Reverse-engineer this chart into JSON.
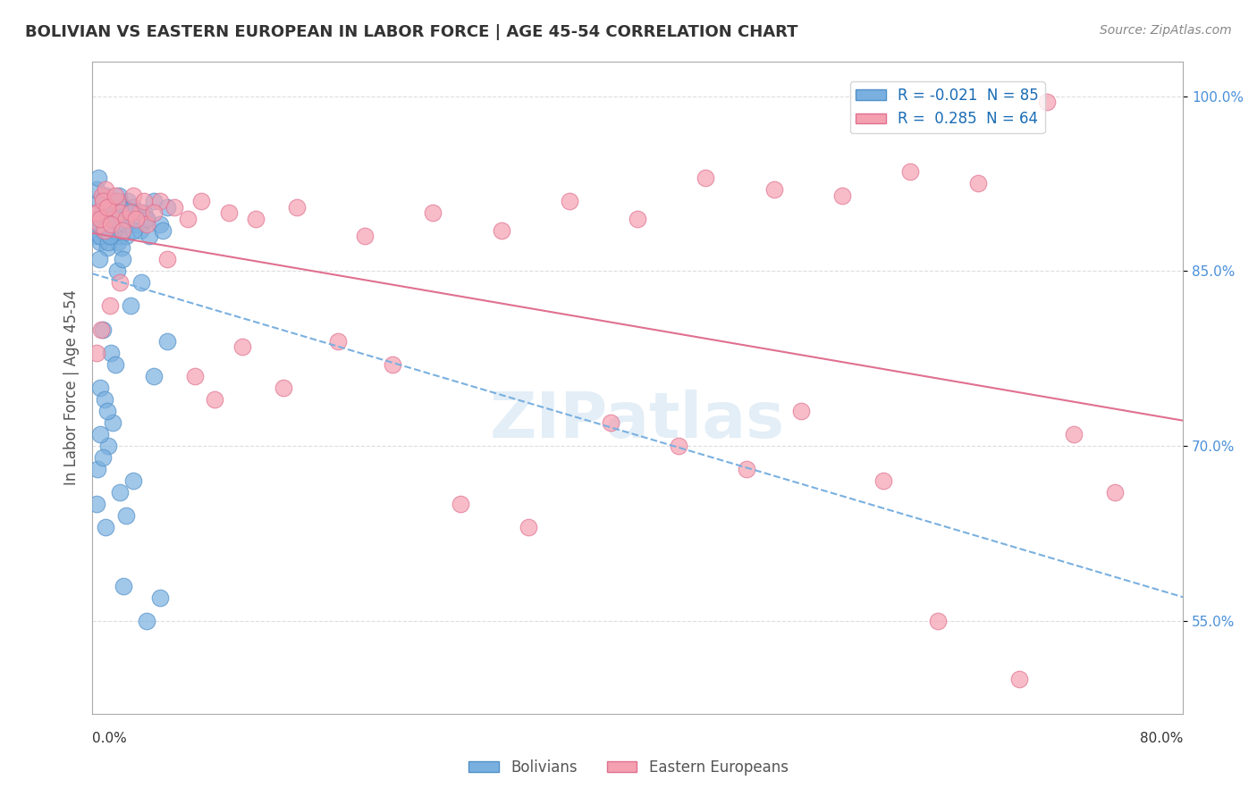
{
  "title": "BOLIVIAN VS EASTERN EUROPEAN IN LABOR FORCE | AGE 45-54 CORRELATION CHART",
  "source": "Source: ZipAtlas.com",
  "xlabel_bottom": "",
  "ylabel": "In Labor Force | Age 45-54",
  "xaxis_label_bottom": "0.0%",
  "xaxis_label_right": "80.0%",
  "xlim": [
    0.0,
    80.0
  ],
  "ylim": [
    47.0,
    103.0
  ],
  "yticks": [
    55.0,
    70.0,
    85.0,
    100.0
  ],
  "ytick_labels": [
    "55.0%",
    "70.0%",
    "85.0%",
    "100.0%"
  ],
  "blue_R": "-0.021",
  "blue_N": "85",
  "pink_R": "0.285",
  "pink_N": "64",
  "blue_color": "#7ab0e0",
  "pink_color": "#f4a0b0",
  "blue_edge": "#5090c8",
  "pink_edge": "#e07090",
  "watermark": "ZIPatlas",
  "title_color": "#333333",
  "axis_color": "#aaaaaa",
  "grid_color": "#dddddd",
  "legend_R_color": "#1a6cb5",
  "blue_scatter_x": [
    0.3,
    0.4,
    0.5,
    0.6,
    0.7,
    0.8,
    0.9,
    1.0,
    1.1,
    1.2,
    1.3,
    1.4,
    1.5,
    1.6,
    1.7,
    1.8,
    1.9,
    2.0,
    2.1,
    2.2,
    2.4,
    2.5,
    2.6,
    3.0,
    3.2,
    3.5,
    3.8,
    4.0,
    4.2,
    4.5,
    5.0,
    5.2,
    5.5,
    0.35,
    0.55,
    0.75,
    0.95,
    1.15,
    1.35,
    1.55,
    1.75,
    1.95,
    2.15,
    2.35,
    0.45,
    0.65,
    0.85,
    1.05,
    0.5,
    0.7,
    1.0,
    1.3,
    1.6,
    2.0,
    2.5,
    3.0,
    3.5,
    4.0,
    0.3,
    0.4,
    0.6,
    0.8,
    1.0,
    1.2,
    1.5,
    2.0,
    2.5,
    3.0,
    4.0,
    5.0,
    1.8,
    2.2,
    0.9,
    1.4,
    2.8,
    3.6,
    4.5,
    5.5,
    0.55,
    0.75,
    1.1,
    1.7,
    2.3
  ],
  "blue_scatter_y": [
    88.0,
    89.5,
    91.0,
    87.5,
    90.0,
    88.5,
    89.0,
    91.5,
    87.0,
    90.5,
    88.0,
    89.0,
    91.0,
    88.5,
    90.0,
    89.5,
    87.5,
    91.0,
    88.0,
    90.0,
    89.5,
    88.0,
    91.0,
    90.5,
    89.0,
    88.5,
    90.0,
    89.5,
    88.0,
    91.0,
    89.0,
    88.5,
    90.5,
    92.0,
    88.0,
    89.5,
    91.0,
    87.5,
    90.0,
    88.5,
    89.0,
    91.5,
    87.0,
    90.5,
    93.0,
    89.0,
    91.0,
    88.5,
    86.0,
    90.0,
    89.5,
    88.0,
    91.0,
    90.5,
    89.0,
    88.5,
    90.0,
    89.5,
    65.0,
    68.0,
    75.0,
    80.0,
    63.0,
    70.0,
    72.0,
    66.0,
    64.0,
    67.0,
    55.0,
    57.0,
    85.0,
    86.0,
    74.0,
    78.0,
    82.0,
    84.0,
    76.0,
    79.0,
    71.0,
    69.0,
    73.0,
    77.0,
    58.0
  ],
  "pink_scatter_x": [
    0.3,
    0.5,
    0.7,
    0.9,
    1.0,
    1.2,
    1.5,
    1.8,
    2.0,
    2.5,
    3.0,
    3.5,
    4.0,
    5.0,
    6.0,
    7.0,
    8.0,
    10.0,
    12.0,
    15.0,
    20.0,
    25.0,
    30.0,
    35.0,
    40.0,
    45.0,
    50.0,
    55.0,
    60.0,
    65.0,
    70.0,
    0.4,
    0.6,
    0.8,
    1.1,
    1.4,
    1.7,
    2.2,
    2.8,
    3.2,
    3.8,
    4.5,
    0.35,
    0.65,
    1.3,
    2.0,
    5.5,
    7.5,
    9.0,
    11.0,
    14.0,
    18.0,
    22.0,
    27.0,
    32.0,
    38.0,
    43.0,
    48.0,
    52.0,
    58.0,
    62.0,
    68.0,
    72.0,
    75.0
  ],
  "pink_scatter_y": [
    90.0,
    89.0,
    91.5,
    88.5,
    92.0,
    90.5,
    89.5,
    91.0,
    90.0,
    89.5,
    91.5,
    90.0,
    89.0,
    91.0,
    90.5,
    89.5,
    91.0,
    90.0,
    89.5,
    90.5,
    88.0,
    90.0,
    88.5,
    91.0,
    89.5,
    93.0,
    92.0,
    91.5,
    93.5,
    92.5,
    99.5,
    90.0,
    89.5,
    91.0,
    90.5,
    89.0,
    91.5,
    88.5,
    90.0,
    89.5,
    91.0,
    90.0,
    78.0,
    80.0,
    82.0,
    84.0,
    86.0,
    76.0,
    74.0,
    78.5,
    75.0,
    79.0,
    77.0,
    65.0,
    63.0,
    72.0,
    70.0,
    68.0,
    73.0,
    67.0,
    55.0,
    50.0,
    71.0,
    66.0
  ]
}
